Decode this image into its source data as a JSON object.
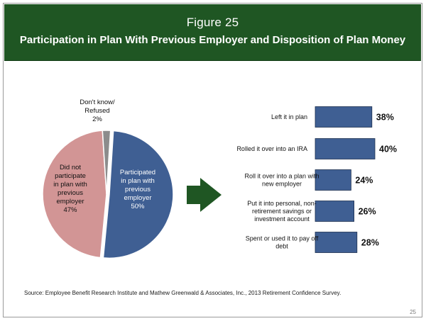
{
  "figure": {
    "label": "Figure 25",
    "title": "Participation in Plan With Previous Employer and Disposition of Plan Money"
  },
  "chart_data": [
    {
      "type": "pie",
      "slices": [
        {
          "label_lines": [
            "Participated",
            "in plan with",
            "previous",
            "employer",
            "50%"
          ],
          "value": 50,
          "color": "#3f5f93"
        },
        {
          "label_lines": [
            "Did not",
            "participate",
            "in plan with",
            "previous",
            "employer",
            "47%"
          ],
          "value": 47,
          "color": "#d29595"
        },
        {
          "label_lines": [
            "Don't know/",
            "Refused",
            "2%"
          ],
          "value": 2,
          "color": "#8c8c8c"
        }
      ]
    },
    {
      "type": "bar",
      "orientation": "horizontal",
      "categories": [
        [
          "Left it in plan"
        ],
        [
          "Rolled it over into an IRA"
        ],
        [
          "Roll it over into a plan with",
          "new employer"
        ],
        [
          "Put it into personal, non-",
          "retirement savings or",
          "investment account"
        ],
        [
          "Spent or used it to pay off",
          "debt"
        ]
      ],
      "values": [
        38,
        40,
        24,
        26,
        28
      ],
      "value_labels": [
        "38%",
        "40%",
        "24%",
        "26%",
        "28%"
      ],
      "color": "#3f5f93"
    }
  ],
  "source": "Source:  Employee Benefit Research Institute and Mathew Greenwald & Associates, Inc., 2013 Retirement Confidence Survey.",
  "page_number": "25",
  "arrow_color": "#1f5623"
}
